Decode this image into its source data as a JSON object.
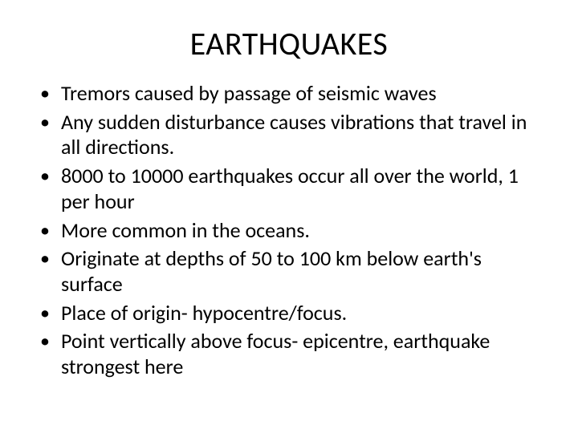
{
  "slide": {
    "title": "EARTHQUAKES",
    "title_fontsize": 40,
    "body_fontsize": 26,
    "background_color": "#ffffff",
    "text_color": "#000000",
    "bullets": [
      "Tremors caused by passage of seismic waves",
      "Any sudden disturbance causes vibrations that travel in all directions.",
      "8000 to 10000 earthquakes occur all over the world, 1 per hour",
      "More common in the oceans.",
      "Originate at depths of 50 to 100 km below earth's surface",
      "Place of origin- hypocentre/focus.",
      "Point vertically above focus- epicentre, earthquake strongest here"
    ]
  }
}
